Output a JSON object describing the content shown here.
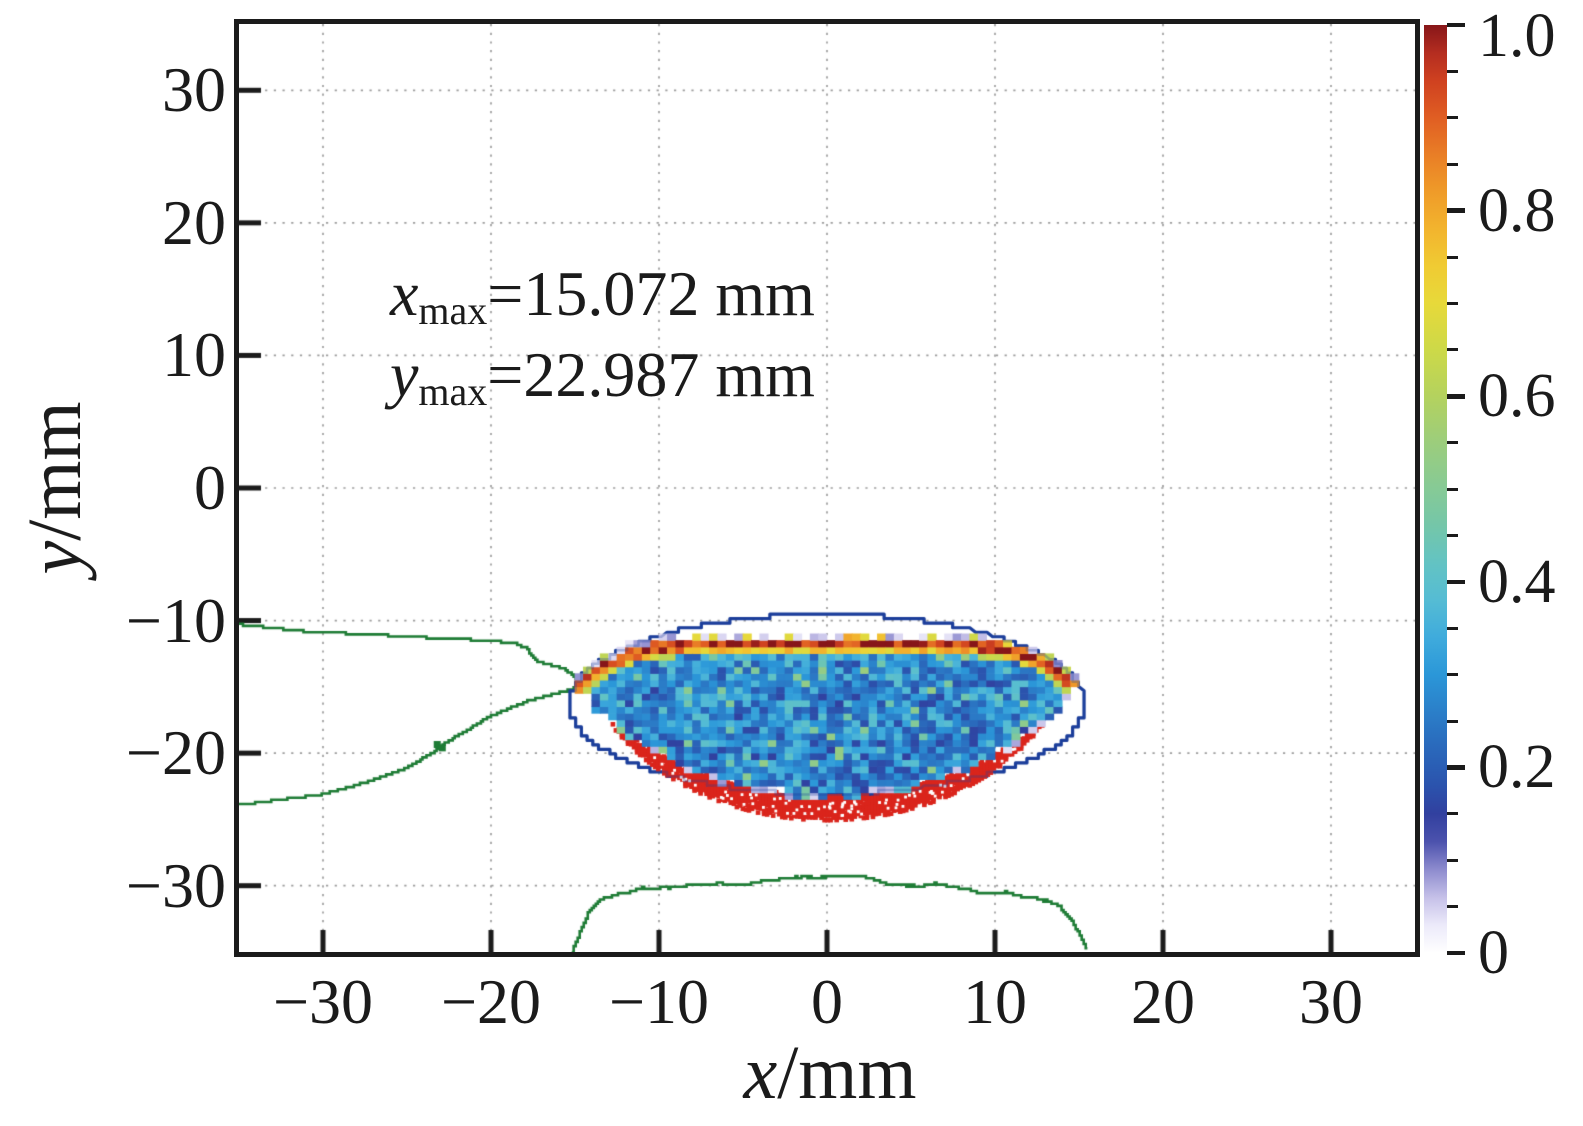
{
  "axes": {
    "x_label": {
      "variable": "x",
      "unit": "/mm"
    },
    "y_label": {
      "variable": "y",
      "unit": "/mm"
    },
    "xlim": [
      -35,
      35
    ],
    "ylim": [
      -35,
      35
    ],
    "grid_step": 10,
    "grid_color": "#9c9c9c",
    "spine_color": "#1b1b1b",
    "xticks": [
      {
        "value": -30,
        "label": "−30"
      },
      {
        "value": -20,
        "label": "−20"
      },
      {
        "value": -10,
        "label": "−10"
      },
      {
        "value": 0,
        "label": "0"
      },
      {
        "value": 10,
        "label": "10"
      },
      {
        "value": 20,
        "label": "20"
      },
      {
        "value": 30,
        "label": "30"
      }
    ],
    "yticks": [
      {
        "value": 30,
        "label": "30"
      },
      {
        "value": 20,
        "label": "20"
      },
      {
        "value": 10,
        "label": "10"
      },
      {
        "value": 0,
        "label": "0"
      },
      {
        "value": -10,
        "label": "−10"
      },
      {
        "value": -20,
        "label": "−20"
      },
      {
        "value": -30,
        "label": "−30"
      }
    ]
  },
  "annotation": {
    "lines": [
      {
        "variable": "x",
        "subscript": "max",
        "text": "=15.072 mm"
      },
      {
        "variable": "y",
        "subscript": "max",
        "text": "=22.987 mm"
      }
    ]
  },
  "colorbar": {
    "range": [
      0,
      1
    ],
    "minor_step": 0.05,
    "ticks": [
      {
        "value": 1.0,
        "label": "1.0"
      },
      {
        "value": 0.8,
        "label": "0.8"
      },
      {
        "value": 0.6,
        "label": "0.6"
      },
      {
        "value": 0.4,
        "label": "0.4"
      },
      {
        "value": 0.2,
        "label": "0.2"
      },
      {
        "value": 0.0,
        "label": "0"
      }
    ],
    "stops": [
      [
        0.0,
        "#ffffff"
      ],
      [
        0.03,
        "#eceafa"
      ],
      [
        0.06,
        "#c5c0e8"
      ],
      [
        0.09,
        "#8d8bce"
      ],
      [
        0.12,
        "#4c52ad"
      ],
      [
        0.15,
        "#31409f"
      ],
      [
        0.18,
        "#2b53ad"
      ],
      [
        0.22,
        "#2a68bb"
      ],
      [
        0.26,
        "#2b7fc9"
      ],
      [
        0.3,
        "#2b97d8"
      ],
      [
        0.34,
        "#3fabdc"
      ],
      [
        0.38,
        "#55bcd4"
      ],
      [
        0.42,
        "#63c3c3"
      ],
      [
        0.46,
        "#74c6a9"
      ],
      [
        0.5,
        "#86ca96"
      ],
      [
        0.55,
        "#9ccd7c"
      ],
      [
        0.6,
        "#b4d25e"
      ],
      [
        0.65,
        "#cdd948"
      ],
      [
        0.7,
        "#e7d93a"
      ],
      [
        0.74,
        "#f0cb33"
      ],
      [
        0.78,
        "#f2b42e"
      ],
      [
        0.82,
        "#ef9b29"
      ],
      [
        0.86,
        "#e97e26"
      ],
      [
        0.9,
        "#e05e23"
      ],
      [
        0.94,
        "#cf4120"
      ],
      [
        0.97,
        "#b42d20"
      ],
      [
        1.0,
        "#871619"
      ]
    ]
  },
  "chart_data": {
    "type": "heatmap",
    "title": "",
    "xlabel": "x/mm",
    "ylabel": "y/mm",
    "xlim": [
      -35,
      35
    ],
    "ylim": [
      -35,
      35
    ],
    "colorbar_range": [
      0,
      1
    ],
    "grid": true,
    "annotations": [
      "x_max=15.072 mm",
      "y_max=22.987 mm"
    ],
    "x_max_mm": 15.072,
    "y_max_mm": 22.987,
    "lens_region": {
      "comment": "noisy blue/cyan 2D-histogram lens between top and bottom arcs, x in [-15.15,15.15]",
      "cell_mm": 0.5,
      "half_width": 15.15,
      "top_edge": {
        "y0": -10.9,
        "depth": 3.95,
        "power": 6
      },
      "bottom_edge_circle": {
        "cy": -5.8,
        "r": 17.6
      },
      "base_value_range": [
        0.15,
        0.45
      ]
    },
    "band": {
      "comment": "bright yellow/orange/red arc just below the lens top edge",
      "center_depth_mm": 0.85,
      "sigma_mm": 0.55,
      "value_range": [
        0.55,
        1.0
      ]
    },
    "red_region": {
      "comment": "solid red crescent below the lens bottom edge",
      "outer_circle": {
        "cy": -10.0,
        "r": 15.05
      },
      "half_width": 12.93,
      "value": 0.93,
      "color": "#da251c"
    },
    "ellipse_contour": {
      "comment": "navy stepped ellipse outline around the distribution",
      "cx": 0,
      "cy": -16.3,
      "rx": 15.35,
      "ry": 6.78,
      "color": "#1c3e9b"
    },
    "green_contours": {
      "color": "#1e7c35",
      "lines": [
        {
          "name": "upper-left",
          "points": [
            [
              -35,
              -10.3
            ],
            [
              -30.5,
              -10.9
            ],
            [
              -27.5,
              -11.0
            ],
            [
              -25.4,
              -11.2
            ],
            [
              -23.5,
              -11.3
            ],
            [
              -21.7,
              -11.4
            ],
            [
              -19.5,
              -11.6
            ],
            [
              -18.6,
              -11.7
            ],
            [
              -17.9,
              -12.1
            ],
            [
              -17.3,
              -13.1
            ],
            [
              -15.7,
              -13.6
            ],
            [
              -15.1,
              -14.2
            ],
            [
              -14.6,
              -14.8
            ]
          ]
        },
        {
          "name": "lower-left",
          "points": [
            [
              -35,
              -23.9
            ],
            [
              -30,
              -23.1
            ],
            [
              -27.5,
              -22.2
            ],
            [
              -25.4,
              -21.3
            ],
            [
              -23.5,
              -20.0
            ],
            [
              -22.7,
              -19.2
            ],
            [
              -21.5,
              -18.3
            ],
            [
              -20.2,
              -17.3
            ],
            [
              -18.7,
              -16.5
            ],
            [
              -17.7,
              -16.0
            ],
            [
              -16.5,
              -15.6
            ],
            [
              -15.3,
              -15.2
            ],
            [
              -14.6,
              -14.8
            ]
          ]
        },
        {
          "name": "bottom-dome",
          "points": [
            [
              -15.2,
              -35
            ],
            [
              -14.6,
              -33.2
            ],
            [
              -14.2,
              -32.2
            ],
            [
              -13.5,
              -31.3
            ],
            [
              -12.5,
              -30.9
            ],
            [
              -11.5,
              -30.5
            ],
            [
              -10,
              -30.2
            ],
            [
              -9,
              -30.05
            ],
            [
              -8,
              -29.95
            ],
            [
              -7,
              -29.85
            ],
            [
              -6,
              -29.8
            ],
            [
              -5,
              -29.7
            ],
            [
              -4,
              -29.55
            ],
            [
              -3,
              -29.5
            ],
            [
              -2,
              -29.55
            ],
            [
              -1,
              -29.45
            ],
            [
              0,
              -29.4
            ],
            [
              1,
              -29.45
            ],
            [
              2,
              -29.5
            ],
            [
              3,
              -29.55
            ],
            [
              4,
              -29.65
            ],
            [
              5,
              -29.75
            ],
            [
              6,
              -29.8
            ],
            [
              7,
              -29.9
            ],
            [
              8,
              -30.1
            ],
            [
              9,
              -30.3
            ],
            [
              10,
              -30.45
            ],
            [
              11,
              -30.6
            ],
            [
              12,
              -30.75
            ],
            [
              13,
              -31.0
            ],
            [
              13.8,
              -31.5
            ],
            [
              14.5,
              -32.5
            ],
            [
              15.1,
              -33.8
            ],
            [
              15.5,
              -35
            ]
          ]
        }
      ],
      "blobs": [
        [
          -23.2,
          -19.35
        ],
        [
          -22.9,
          -19.6
        ]
      ]
    }
  },
  "colors": {
    "background": "#ffffff",
    "text": "#1b1b1b",
    "grid": "#9c9c9c",
    "green_contour": "#1e7c35",
    "navy_contour": "#1c3e9b",
    "red_region": "#da251c"
  }
}
